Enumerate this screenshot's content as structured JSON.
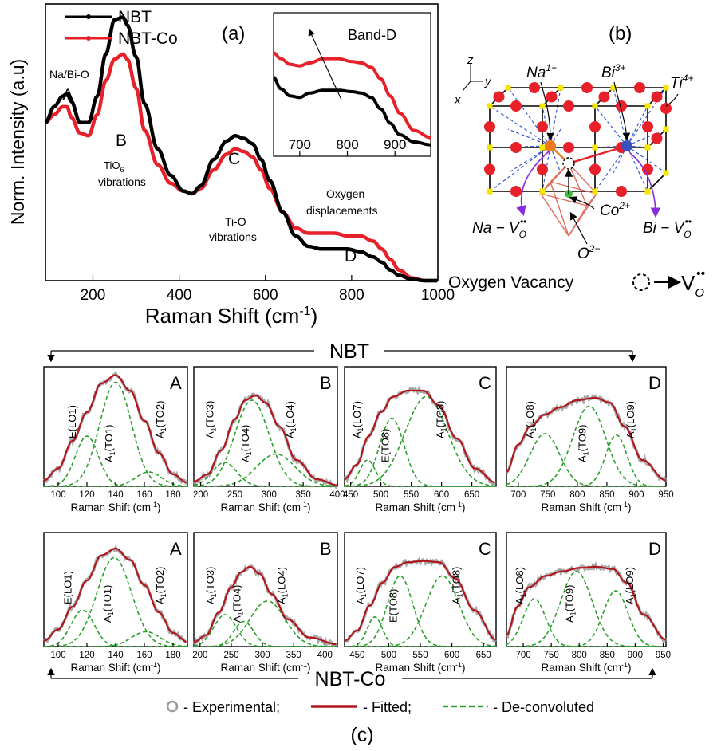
{
  "colors": {
    "nbt": "#000000",
    "nbt_co": "#e8202a",
    "experimental": "#9a9a9a",
    "fitted": "#b0161c",
    "deconv": "#2ca02c",
    "sphere_red": "#e8202a",
    "sphere_orange": "#f07a1a",
    "sphere_blue": "#3a4fc0",
    "sphere_green": "#3dbb3d",
    "cube_corner": "#f5e600",
    "bond_dash": "#3b5bd6",
    "octahedron": "#e06b5a",
    "vacancy_arrow": "#8a2be2"
  },
  "panel_a": {
    "label": "(a)",
    "ylabel": "Norm. Intensity (a.u)",
    "xlabel": "Raman Shift (cm",
    "xlabel_sup": "-1",
    "xlabel_end": ")",
    "legend": [
      "NBT",
      "NBT-Co"
    ],
    "annotations": {
      "nabio": "Na/Bi-O",
      "A": "A",
      "B": "B",
      "tio6_1": "TiO",
      "tio6_sub": "6",
      "tio6_2": "vibrations",
      "C": "C",
      "tio_1": "Ti-O",
      "tio_2": "vibrations",
      "oxy_1": "Oxygen",
      "oxy_2": "displacements",
      "D": "D"
    },
    "inset_title": "Band-D"
  },
  "panel_b": {
    "label": "(b)",
    "axes": [
      "z",
      "y",
      "x"
    ],
    "ions": [
      "Na",
      "1+",
      "Bi",
      "3+",
      "Ti",
      "4+"
    ],
    "vacancy_labels": [
      "Na",
      "Co",
      "2+",
      "Bi",
      "O",
      "2−"
    ],
    "vacancy_symbol": "V",
    "vacancy_sub": "O",
    "vacancy_sup": "••",
    "oxygen_vacancy_text": "Oxygen Vacancy"
  },
  "panel_c": {
    "label": "(c)",
    "group_top": "NBT",
    "group_bottom": "NBT-Co",
    "legend": [
      "- Experimental;",
      "- Fitted;",
      "- De-convoluted"
    ],
    "xlabel": "Raman Shift (cm",
    "xlabel_sup": "-1",
    "xlabel_end": ")"
  },
  "chart_data": [
    {
      "type": "line",
      "panel": "a",
      "xlabel": "Raman Shift (cm-1)",
      "ylabel": "Norm. Intensity (a.u)",
      "xlim": [
        90,
        1000
      ],
      "ylim": [
        0,
        1.05
      ],
      "xticks": [
        200,
        400,
        600,
        800,
        1000
      ],
      "series": [
        {
          "name": "NBT",
          "x": [
            90,
            110,
            130,
            140,
            150,
            170,
            190,
            210,
            230,
            250,
            270,
            280,
            300,
            320,
            350,
            380,
            410,
            430,
            450,
            480,
            510,
            530,
            550,
            570,
            590,
            610,
            640,
            670,
            700,
            730,
            760,
            790,
            820,
            850,
            870,
            890,
            910,
            940,
            970,
            1000
          ],
          "y": [
            0.6,
            0.66,
            0.7,
            0.71,
            0.68,
            0.6,
            0.6,
            0.7,
            0.86,
            0.99,
            1.0,
            0.97,
            0.85,
            0.67,
            0.5,
            0.4,
            0.34,
            0.33,
            0.36,
            0.46,
            0.53,
            0.55,
            0.54,
            0.52,
            0.46,
            0.38,
            0.26,
            0.17,
            0.13,
            0.12,
            0.12,
            0.12,
            0.11,
            0.09,
            0.07,
            0.04,
            0.02,
            0.005,
            0.0,
            0.0
          ]
        },
        {
          "name": "NBT-Co",
          "x": [
            90,
            110,
            130,
            140,
            150,
            170,
            190,
            210,
            230,
            250,
            270,
            280,
            300,
            320,
            350,
            380,
            410,
            430,
            450,
            480,
            510,
            530,
            550,
            570,
            590,
            610,
            640,
            670,
            700,
            730,
            760,
            790,
            820,
            850,
            870,
            890,
            910,
            940,
            970,
            1000
          ],
          "y": [
            0.6,
            0.63,
            0.66,
            0.66,
            0.62,
            0.56,
            0.55,
            0.63,
            0.76,
            0.84,
            0.86,
            0.84,
            0.73,
            0.57,
            0.44,
            0.37,
            0.34,
            0.33,
            0.35,
            0.42,
            0.48,
            0.5,
            0.49,
            0.47,
            0.42,
            0.35,
            0.26,
            0.2,
            0.18,
            0.18,
            0.18,
            0.17,
            0.17,
            0.15,
            0.12,
            0.08,
            0.04,
            0.01,
            0.0,
            0.0
          ]
        }
      ]
    },
    {
      "type": "line",
      "panel": "a-inset",
      "title": "Band-D",
      "xlim": [
        645,
        975
      ],
      "xticks": [
        700,
        800,
        900
      ],
      "series": [
        {
          "name": "NBT",
          "x": [
            645,
            660,
            680,
            700,
            720,
            750,
            780,
            810,
            830,
            850,
            870,
            890,
            910,
            940,
            975
          ],
          "y": [
            0.55,
            0.47,
            0.42,
            0.41,
            0.44,
            0.46,
            0.46,
            0.45,
            0.44,
            0.41,
            0.33,
            0.23,
            0.15,
            0.1,
            0.08
          ]
        },
        {
          "name": "NBT-Co",
          "x": [
            645,
            660,
            680,
            700,
            720,
            750,
            780,
            810,
            830,
            850,
            870,
            890,
            910,
            940,
            975
          ],
          "y": [
            0.72,
            0.68,
            0.64,
            0.63,
            0.65,
            0.68,
            0.68,
            0.66,
            0.65,
            0.62,
            0.54,
            0.42,
            0.3,
            0.18,
            0.13
          ]
        }
      ]
    },
    {
      "type": "line",
      "panel": "c",
      "group": "NBT",
      "letter": "A",
      "xlim": [
        90,
        190
      ],
      "xticks": [
        100,
        120,
        140,
        160,
        180
      ],
      "fitted": [
        [
          90,
          0.05
        ],
        [
          100,
          0.15
        ],
        [
          110,
          0.38
        ],
        [
          120,
          0.62
        ],
        [
          130,
          0.86
        ],
        [
          140,
          0.93
        ],
        [
          150,
          0.8
        ],
        [
          160,
          0.55
        ],
        [
          170,
          0.28
        ],
        [
          180,
          0.1
        ],
        [
          190,
          0.03
        ]
      ],
      "peaks": [
        {
          "label": "E(LO1)",
          "x": 120,
          "y": 0.42,
          "w": 8
        },
        {
          "label": "A1(TO1)",
          "x": 140,
          "y": 0.87,
          "w": 11
        },
        {
          "label": "A1(TO2)",
          "x": 163,
          "y": 0.12,
          "w": 9
        }
      ],
      "peak_labels": [
        {
          "main": "E(LO1)",
          "sub": ""
        },
        {
          "main": "A",
          "sub": "1",
          "rest": "(TO1)"
        },
        {
          "main": "A",
          "sub": "1",
          "rest": "(TO2)"
        }
      ]
    },
    {
      "type": "line",
      "panel": "c",
      "group": "NBT",
      "letter": "B",
      "xlim": [
        190,
        400
      ],
      "xticks": [
        200,
        250,
        300,
        350,
        400
      ],
      "fitted": [
        [
          190,
          0.04
        ],
        [
          210,
          0.1
        ],
        [
          230,
          0.3
        ],
        [
          250,
          0.56
        ],
        [
          265,
          0.72
        ],
        [
          280,
          0.76
        ],
        [
          295,
          0.7
        ],
        [
          315,
          0.5
        ],
        [
          340,
          0.22
        ],
        [
          370,
          0.06
        ],
        [
          400,
          0.01
        ]
      ],
      "peaks": [
        {
          "label": "A1(TO3)",
          "x": 235,
          "y": 0.2,
          "w": 18
        },
        {
          "label": "A1(TO4)",
          "x": 275,
          "y": 0.72,
          "w": 25
        },
        {
          "label": "A1(LO4)",
          "x": 310,
          "y": 0.27,
          "w": 28
        }
      ],
      "peak_labels": [
        {
          "main": "A",
          "sub": "1",
          "rest": "(TO3)"
        },
        {
          "main": "A",
          "sub": "1",
          "rest": "(TO4)"
        },
        {
          "main": "A",
          "sub": "1",
          "rest": "(LO4)"
        }
      ]
    },
    {
      "type": "line",
      "panel": "c",
      "group": "NBT",
      "letter": "C",
      "xlim": [
        440,
        690
      ],
      "xticks": [
        450,
        500,
        550,
        600,
        650
      ],
      "fitted": [
        [
          440,
          0.06
        ],
        [
          460,
          0.18
        ],
        [
          480,
          0.42
        ],
        [
          500,
          0.62
        ],
        [
          520,
          0.75
        ],
        [
          545,
          0.8
        ],
        [
          570,
          0.8
        ],
        [
          595,
          0.68
        ],
        [
          625,
          0.4
        ],
        [
          655,
          0.15
        ],
        [
          690,
          0.03
        ]
      ],
      "peaks": [
        {
          "label": "A1(LO7)",
          "x": 478,
          "y": 0.22,
          "w": 13
        },
        {
          "label": "E(TO8)",
          "x": 518,
          "y": 0.57,
          "w": 20
        },
        {
          "label": "A1(TO8)",
          "x": 575,
          "y": 0.75,
          "w": 35
        }
      ],
      "peak_labels": [
        {
          "main": "A",
          "sub": "1",
          "rest": "(LO7)"
        },
        {
          "main": "E(TO8)",
          "sub": ""
        },
        {
          "main": "A",
          "sub": "1",
          "rest": "(TO8)"
        }
      ]
    },
    {
      "type": "line",
      "panel": "c",
      "group": "NBT",
      "letter": "D",
      "xlim": [
        680,
        950
      ],
      "xticks": [
        700,
        750,
        800,
        850,
        900,
        950
      ],
      "fitted": [
        [
          680,
          0.12
        ],
        [
          700,
          0.35
        ],
        [
          720,
          0.5
        ],
        [
          745,
          0.6
        ],
        [
          770,
          0.66
        ],
        [
          800,
          0.72
        ],
        [
          830,
          0.74
        ],
        [
          855,
          0.7
        ],
        [
          880,
          0.5
        ],
        [
          910,
          0.22
        ],
        [
          950,
          0.05
        ]
      ],
      "peaks": [
        {
          "label": "A1(LO8)",
          "x": 745,
          "y": 0.44,
          "w": 25
        },
        {
          "label": "A1(TO9)",
          "x": 820,
          "y": 0.67,
          "w": 28
        },
        {
          "label": "A1(LO9)",
          "x": 866,
          "y": 0.43,
          "w": 18
        }
      ],
      "peak_labels": [
        {
          "main": "A",
          "sub": "1",
          "rest": "(LO8)"
        },
        {
          "main": "A",
          "sub": "1",
          "rest": "(TO9)"
        },
        {
          "main": "A",
          "sub": "1",
          "rest": "(LO9)"
        }
      ]
    },
    {
      "type": "line",
      "panel": "c",
      "group": "NBT-Co",
      "letter": "A",
      "xlim": [
        90,
        190
      ],
      "xticks": [
        100,
        120,
        140,
        160,
        180
      ],
      "fitted": [
        [
          90,
          0.05
        ],
        [
          100,
          0.15
        ],
        [
          110,
          0.35
        ],
        [
          120,
          0.58
        ],
        [
          130,
          0.8
        ],
        [
          140,
          0.86
        ],
        [
          150,
          0.76
        ],
        [
          160,
          0.54
        ],
        [
          170,
          0.3
        ],
        [
          180,
          0.12
        ],
        [
          190,
          0.04
        ]
      ],
      "peaks": [
        {
          "label": "E(LO1)",
          "x": 117,
          "y": 0.32,
          "w": 8
        },
        {
          "label": "A1(TO1)",
          "x": 139,
          "y": 0.78,
          "w": 12
        },
        {
          "label": "A1(TO2)",
          "x": 161,
          "y": 0.13,
          "w": 10
        }
      ],
      "peak_labels": [
        {
          "main": "E(LO1)",
          "sub": ""
        },
        {
          "main": "A",
          "sub": "1",
          "rest": "(TO1)"
        },
        {
          "main": "A",
          "sub": "1",
          "rest": "(TO2)"
        }
      ]
    },
    {
      "type": "line",
      "panel": "c",
      "group": "NBT-Co",
      "letter": "B",
      "xlim": [
        190,
        420
      ],
      "xticks": [
        200,
        250,
        300,
        350,
        400
      ],
      "fitted": [
        [
          190,
          0.04
        ],
        [
          210,
          0.1
        ],
        [
          230,
          0.3
        ],
        [
          250,
          0.52
        ],
        [
          265,
          0.65
        ],
        [
          280,
          0.7
        ],
        [
          295,
          0.64
        ],
        [
          315,
          0.46
        ],
        [
          340,
          0.24
        ],
        [
          375,
          0.08
        ],
        [
          420,
          0.02
        ]
      ],
      "peaks": [
        {
          "label": "A1(TO3)",
          "x": 240,
          "y": 0.28,
          "w": 18
        },
        {
          "label": "A1(TO4)",
          "x": 270,
          "y": 0.22,
          "w": 16
        },
        {
          "label": "A1(LO4)",
          "x": 308,
          "y": 0.4,
          "w": 28
        }
      ],
      "peak_labels": [
        {
          "main": "A",
          "sub": "1",
          "rest": "(TO3)"
        },
        {
          "main": "A",
          "sub": "1",
          "rest": "(TO4)"
        },
        {
          "main": "A",
          "sub": "1",
          "rest": "(LO4)"
        }
      ]
    },
    {
      "type": "line",
      "panel": "c",
      "group": "NBT-Co",
      "letter": "C",
      "xlim": [
        430,
        670
      ],
      "xticks": [
        450,
        500,
        550,
        600,
        650
      ],
      "fitted": [
        [
          430,
          0.05
        ],
        [
          450,
          0.14
        ],
        [
          470,
          0.36
        ],
        [
          490,
          0.56
        ],
        [
          510,
          0.7
        ],
        [
          530,
          0.74
        ],
        [
          555,
          0.75
        ],
        [
          580,
          0.74
        ],
        [
          605,
          0.6
        ],
        [
          635,
          0.32
        ],
        [
          670,
          0.06
        ]
      ],
      "peaks": [
        {
          "label": "A1(LO7)",
          "x": 478,
          "y": 0.26,
          "w": 12
        },
        {
          "label": "E(TO8)",
          "x": 518,
          "y": 0.62,
          "w": 20
        },
        {
          "label": "A1(TO8)",
          "x": 585,
          "y": 0.62,
          "w": 26
        }
      ],
      "peak_labels": [
        {
          "main": "A",
          "sub": "1",
          "rest": "(LO7)"
        },
        {
          "main": "E(TO8)",
          "sub": ""
        },
        {
          "main": "A",
          "sub": "1",
          "rest": "(TO8)"
        }
      ]
    },
    {
      "type": "line",
      "panel": "c",
      "group": "NBT-Co",
      "letter": "D",
      "xlim": [
        670,
        955
      ],
      "xticks": [
        700,
        750,
        800,
        850,
        900,
        950
      ],
      "fitted": [
        [
          670,
          0.1
        ],
        [
          690,
          0.35
        ],
        [
          710,
          0.52
        ],
        [
          740,
          0.62
        ],
        [
          770,
          0.66
        ],
        [
          800,
          0.69
        ],
        [
          830,
          0.7
        ],
        [
          860,
          0.68
        ],
        [
          885,
          0.56
        ],
        [
          915,
          0.28
        ],
        [
          955,
          0.06
        ]
      ],
      "peaks": [
        {
          "label": "A1(LO8)",
          "x": 720,
          "y": 0.42,
          "w": 20
        },
        {
          "label": "A1(TO9)",
          "x": 795,
          "y": 0.66,
          "w": 28
        },
        {
          "label": "A1(LO9)",
          "x": 865,
          "y": 0.49,
          "w": 22
        }
      ],
      "peak_labels": [
        {
          "main": "A",
          "sub": "1",
          "rest": "(LO8)"
        },
        {
          "main": "A",
          "sub": "1",
          "rest": "(TO9)"
        },
        {
          "main": "A",
          "sub": "1",
          "rest": "(LO9)"
        }
      ]
    }
  ]
}
